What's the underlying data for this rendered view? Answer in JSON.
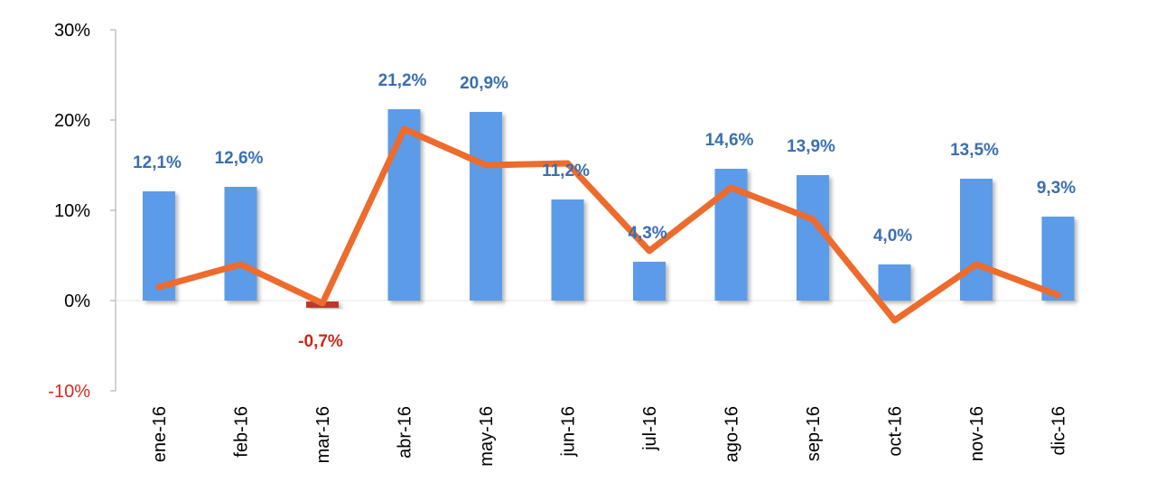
{
  "chart_data": {
    "type": "bar",
    "categories": [
      "ene-16",
      "feb-16",
      "mar-16",
      "abr-16",
      "may-16",
      "jun-16",
      "jul-16",
      "ago-16",
      "sep-16",
      "oct-16",
      "nov-16",
      "dic-16"
    ],
    "series": [
      {
        "type": "bar",
        "values": [
          12.1,
          12.6,
          -0.7,
          21.2,
          20.9,
          11.2,
          4.3,
          14.6,
          13.9,
          4.0,
          13.5,
          9.3
        ],
        "labels": [
          "12,1%",
          "12,6%",
          "-0,7%",
          "21,2%",
          "20,9%",
          "11,2%",
          "4,3%",
          "14,6%",
          "13,9%",
          "4,0%",
          "13,5%",
          "9,3%"
        ],
        "color": "#5b9be8",
        "negative_color": "#c0392b"
      },
      {
        "type": "line",
        "values": [
          1.5,
          4.0,
          -0.3,
          19.0,
          15.0,
          15.2,
          5.5,
          12.5,
          9.0,
          -2.2,
          4.0,
          0.6
        ],
        "color": "#ed6b2c"
      }
    ],
    "y_ticks": [
      {
        "value": 30,
        "label": "30%"
      },
      {
        "value": 20,
        "label": "20%"
      },
      {
        "value": 10,
        "label": "10%"
      },
      {
        "value": 0,
        "label": "0%"
      },
      {
        "value": -10,
        "label": "-10%"
      }
    ],
    "ylim": [
      -10,
      30
    ],
    "grid": false,
    "legend": "none",
    "colors": {
      "label_positive": "#3a6fb0",
      "label_negative": "#c9281e",
      "tick_negative": "#d42a1e",
      "axis": "#a6a6a6"
    }
  }
}
